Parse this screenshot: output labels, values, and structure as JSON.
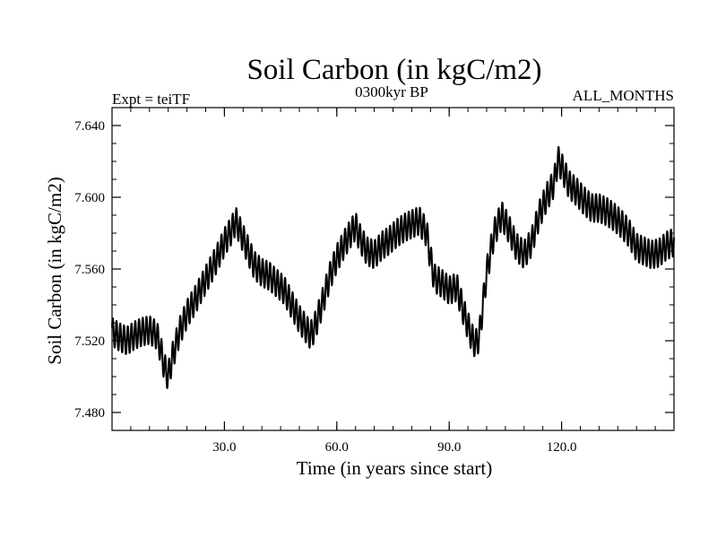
{
  "chart_data": {
    "type": "line",
    "title": "Soil Carbon (in kgC/m2)",
    "subtitle_left": "Expt = teiTF",
    "subtitle_center": "0300kyr BP",
    "subtitle_right": "ALL_MONTHS",
    "xlabel": "Time (in years since start)",
    "ylabel": "Soil Carbon (in kgC/m2)",
    "xlim": [
      0,
      150
    ],
    "ylim": [
      7.47,
      7.65
    ],
    "x_ticks": [
      30,
      60,
      90,
      120
    ],
    "x_tick_labels": [
      "30.0",
      "60.0",
      "90.0",
      "120.0"
    ],
    "y_ticks": [
      7.48,
      7.52,
      7.56,
      7.6,
      7.64
    ],
    "y_tick_labels": [
      "7.480",
      "7.520",
      "7.560",
      "7.600",
      "7.640"
    ],
    "seasonal_amplitude": 0.008,
    "series": [
      {
        "name": "Soil Carbon",
        "x": [
          0,
          2,
          4,
          6,
          8,
          10,
          12,
          13,
          14,
          15,
          16,
          18,
          20,
          22,
          24,
          26,
          28,
          30,
          32,
          33,
          34,
          36,
          38,
          40,
          42,
          44,
          46,
          48,
          50,
          52,
          53,
          54,
          56,
          58,
          60,
          62,
          64,
          65,
          66,
          68,
          70,
          72,
          74,
          76,
          78,
          80,
          82,
          84,
          85,
          86,
          88,
          90,
          92,
          94,
          96,
          97,
          98,
          100,
          102,
          104,
          106,
          108,
          110,
          112,
          114,
          116,
          118,
          119,
          120,
          122,
          124,
          126,
          128,
          130,
          132,
          134,
          136,
          138,
          140,
          142,
          144,
          146,
          148,
          150
        ],
        "values": [
          7.525,
          7.522,
          7.52,
          7.523,
          7.525,
          7.526,
          7.523,
          7.515,
          7.505,
          7.5,
          7.51,
          7.525,
          7.535,
          7.542,
          7.55,
          7.558,
          7.566,
          7.575,
          7.582,
          7.587,
          7.582,
          7.572,
          7.562,
          7.558,
          7.556,
          7.552,
          7.548,
          7.54,
          7.532,
          7.526,
          7.523,
          7.527,
          7.54,
          7.555,
          7.566,
          7.574,
          7.581,
          7.584,
          7.578,
          7.57,
          7.568,
          7.573,
          7.576,
          7.58,
          7.583,
          7.585,
          7.587,
          7.58,
          7.566,
          7.555,
          7.552,
          7.548,
          7.55,
          7.535,
          7.522,
          7.518,
          7.522,
          7.558,
          7.58,
          7.59,
          7.582,
          7.572,
          7.568,
          7.575,
          7.59,
          7.6,
          7.608,
          7.621,
          7.617,
          7.607,
          7.603,
          7.598,
          7.594,
          7.594,
          7.592,
          7.589,
          7.585,
          7.58,
          7.572,
          7.57,
          7.568,
          7.569,
          7.573,
          7.575
        ]
      }
    ]
  }
}
